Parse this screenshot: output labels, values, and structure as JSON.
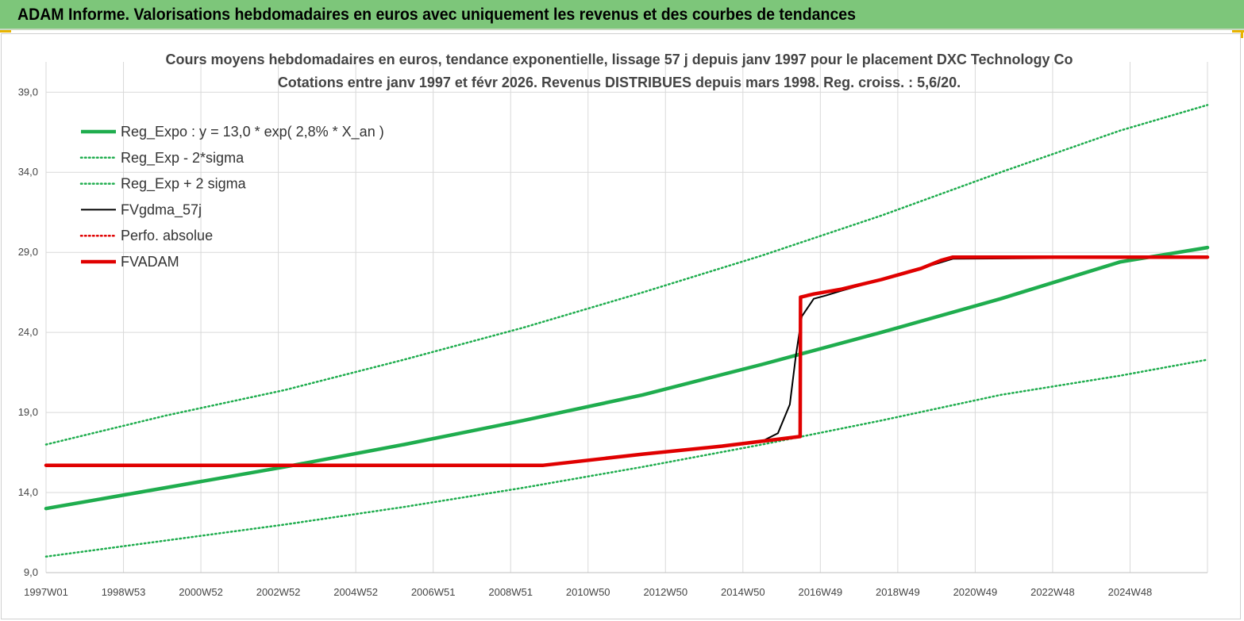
{
  "header": {
    "title": "ADAM Informe. Valorisations hebdomadaires en euros avec uniquement les revenus et des courbes de tendances"
  },
  "colors": {
    "header_bg": "#7dc67a",
    "trend_green": "#1fad4e",
    "fv_black": "#000000",
    "perf_red": "#e00000"
  },
  "chart_data": {
    "type": "line",
    "title_lines": [
      "Cours moyens hebdomadaires en euros, tendance exponentielle, lissage 57 j depuis janv 1997 pour le placement DXC Technology Co",
      "Cotations entre janv 1997 et févr 2026. Revenus DISTRIBUES depuis mars 1998. Reg. croiss. : 5,6/20."
    ],
    "x_tick_labels": [
      "1997W01",
      "1998W53",
      "2000W52",
      "2002W52",
      "2004W52",
      "2006W51",
      "2008W51",
      "2010W50",
      "2012W50",
      "2014W50",
      "2016W49",
      "2018W49",
      "2020W49",
      "2022W48",
      "2024W48"
    ],
    "x_range": [
      1997.0,
      2026.2
    ],
    "y_tick_labels": [
      "9,0",
      "14,0",
      "19,0",
      "24,0",
      "29,0",
      "34,0",
      "39,0"
    ],
    "y_range": [
      9.0,
      40.5
    ],
    "grid": true,
    "legend_position": "top-left",
    "legend": [
      {
        "label": "Reg_Expo : y = 13,0 * exp( 2,8% *  X_an )",
        "color": "#1fad4e",
        "style": "thick"
      },
      {
        "label": "Reg_Exp - 2*sigma",
        "color": "#1fad4e",
        "style": "dotted"
      },
      {
        "label": "Reg_Exp + 2 sigma",
        "color": "#1fad4e",
        "style": "dotted"
      },
      {
        "label": "FVgdma_57j",
        "color": "#000000",
        "style": "thin"
      },
      {
        "label": "Perfo. absolue",
        "color": "#e00000",
        "style": "dotted"
      },
      {
        "label": "FVADAM",
        "color": "#e00000",
        "style": "thick"
      }
    ],
    "series": [
      {
        "name": "Reg_Expo : y = 13,0 * exp( 2,8% *  X_an )",
        "x": [
          1997.0,
          2000.0,
          2003.0,
          2006.0,
          2009.0,
          2012.0,
          2015.0,
          2018.0,
          2021.0,
          2024.0,
          2026.2
        ],
        "y": [
          13.0,
          14.3,
          15.6,
          17.0,
          18.5,
          20.1,
          22.0,
          24.0,
          26.1,
          28.4,
          29.3
        ]
      },
      {
        "name": "Reg_Exp - 2*sigma",
        "x": [
          1997.0,
          2000.0,
          2003.0,
          2006.0,
          2009.0,
          2012.0,
          2015.0,
          2018.0,
          2021.0,
          2024.0,
          2026.2
        ],
        "y": [
          10.0,
          11.0,
          12.0,
          13.1,
          14.3,
          15.6,
          17.0,
          18.5,
          20.1,
          21.3,
          22.3
        ]
      },
      {
        "name": "Reg_Exp + 2 sigma",
        "x": [
          1997.0,
          2000.0,
          2003.0,
          2006.0,
          2009.0,
          2012.0,
          2015.0,
          2018.0,
          2021.0,
          2024.0,
          2026.2
        ],
        "y": [
          17.0,
          18.8,
          20.4,
          22.3,
          24.3,
          26.5,
          28.8,
          31.3,
          34.0,
          36.6,
          38.2
        ]
      },
      {
        "name": "FVgdma_57j",
        "x": [
          1997.0,
          2009.5,
          2012.0,
          2014.0,
          2015.0,
          2015.4,
          2015.7,
          2015.85,
          2016.0,
          2016.3,
          2016.6,
          2017.0,
          2018.0,
          2019.0,
          2019.8,
          2026.2
        ],
        "y": [
          15.7,
          15.7,
          16.4,
          16.9,
          17.2,
          17.7,
          19.5,
          22.5,
          25.0,
          26.1,
          26.3,
          26.6,
          27.3,
          28.0,
          28.6,
          28.7
        ]
      },
      {
        "name": "FVADAM",
        "x": [
          1997.0,
          2009.5,
          2012.0,
          2014.0,
          2015.96,
          2015.97,
          2016.3,
          2017.0,
          2018.0,
          2019.0,
          2019.5,
          2019.8,
          2026.2
        ],
        "y": [
          15.7,
          15.7,
          16.4,
          16.9,
          17.5,
          26.2,
          26.4,
          26.7,
          27.3,
          28.0,
          28.5,
          28.7,
          28.7
        ]
      }
    ]
  }
}
